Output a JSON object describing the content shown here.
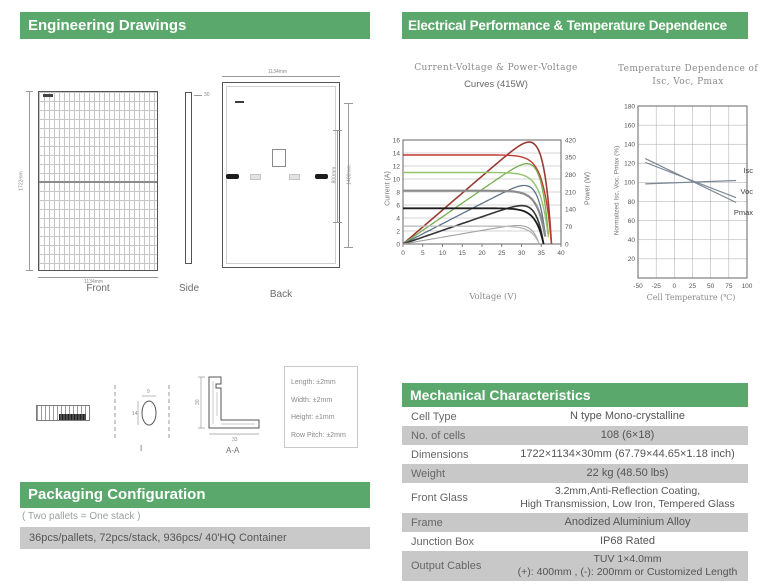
{
  "page": {
    "background": "#ffffff",
    "accent": "#5aa86b",
    "row_gray": "#c8c8c8"
  },
  "sections": {
    "engineering": {
      "title": "Engineering Drawings",
      "view_labels": {
        "front": "Front",
        "side": "Side",
        "back": "Back"
      },
      "dims": {
        "front_height": "1722mm",
        "front_width": "1134mm",
        "side_thickness": "30",
        "back_width": "1134mm",
        "back_hole_inner": "800mm",
        "back_hole_outer": "1400mm",
        "detail_hole_w": "9",
        "detail_hole_h": "14",
        "frame_height": "30",
        "frame_foot": "33"
      },
      "detail_label": "I",
      "section_label": "A-A",
      "tolerances": [
        "Length: ±2mm",
        "Width: ±2mm",
        "Height: ±1mm",
        "Row Pitch: ±2mm"
      ]
    },
    "electrical": {
      "title": "Electrical Performance & Temperature Dependence"
    },
    "mechanical": {
      "title": "Mechanical Characteristics",
      "rows": [
        {
          "label": "Cell Type",
          "value": "N type Mono-crystalline"
        },
        {
          "label": "No. of cells",
          "value": "108 (6×18)"
        },
        {
          "label": "Dimensions",
          "value": "1722×1134×30mm (67.79×44.65×1.18 inch)"
        },
        {
          "label": "Weight",
          "value": "22 kg (48.50 lbs)"
        },
        {
          "label": "Front Glass",
          "value": "3.2mm,Anti-Reflection Coating,",
          "value2": "High Transmission, Low Iron, Tempered Glass"
        },
        {
          "label": "Frame",
          "value": "Anodized Aluminium Alloy"
        },
        {
          "label": "Junction Box",
          "value": "IP68 Rated"
        },
        {
          "label": "Output Cables",
          "value": "TUV  1×4.0mm",
          "value2": "(+): 400mm , (-): 200mm or Customized Length"
        }
      ]
    },
    "packaging": {
      "title": "Packaging Configuration",
      "note": "( Two pallets = One stack )",
      "detail": "36pcs/pallets, 72pcs/stack, 936pcs/ 40'HQ Container"
    }
  },
  "chart_data": [
    {
      "type": "line",
      "title": "Current-Voltage & Power-Voltage",
      "subtitle": "Curves (415W)",
      "xlabel": "Voltage (V)",
      "ylabel_left": "Current (A)",
      "ylabel_right": "Power (W)",
      "xlim": [
        0,
        40
      ],
      "x_ticks": [
        0,
        5,
        10,
        15,
        20,
        25,
        30,
        35,
        40
      ],
      "ylim_left": [
        0,
        16
      ],
      "y_ticks_left": [
        0,
        2,
        4,
        6,
        8,
        10,
        12,
        14,
        16
      ],
      "ylim_right": [
        0,
        420
      ],
      "y_ticks_right": [
        0,
        70,
        140,
        210,
        280,
        350,
        420
      ],
      "grid": "horizontal",
      "series": [
        {
          "isc": 13.7,
          "voc": 37.6,
          "pmax_w": 415,
          "iv_color": "#c03a2f",
          "pv_color": "#9a3a33"
        },
        {
          "isc": 11.0,
          "voc": 37.0,
          "pmax_w": 330,
          "iv_color": "#93c36b",
          "pv_color": "#76ad50"
        },
        {
          "isc": 8.2,
          "voc": 36.3,
          "pmax_w": 245,
          "iv_color": "#8b8b8b",
          "pv_color": "#5f7288"
        },
        {
          "isc": 5.5,
          "voc": 35.6,
          "pmax_w": 162,
          "iv_color": "#1d1d1d",
          "pv_color": "#363636"
        },
        {
          "isc": 2.75,
          "voc": 34.5,
          "pmax_w": 79,
          "iv_color": "#b7b7b7",
          "pv_color": "#a2a2a2"
        }
      ]
    },
    {
      "type": "line",
      "title": "Temperature Dependence of Isc, Voc, Pmax",
      "xlabel": "Cell Temperature (℃)",
      "ylabel": "Normalized Isc, Voc, Pmax (%)",
      "xlim": [
        -50,
        100
      ],
      "x_ticks": [
        -50,
        -25,
        0,
        25,
        50,
        75,
        100
      ],
      "ylim": [
        0,
        180
      ],
      "y_ticks": [
        20,
        40,
        60,
        80,
        100,
        120,
        140,
        160,
        180
      ],
      "grid": "both",
      "line_color": "#7c8794",
      "series": [
        {
          "name": "Isc",
          "points": [
            [
              -40,
              98.5
            ],
            [
              85,
              102
            ]
          ],
          "label_y": 110
        },
        {
          "name": "Voc",
          "points": [
            [
              -40,
              121
            ],
            [
              85,
              84
            ]
          ],
          "label_y": 88
        },
        {
          "name": "Pmax",
          "points": [
            [
              -40,
              125
            ],
            [
              85,
              79
            ]
          ],
          "label_y": 66
        }
      ]
    }
  ]
}
